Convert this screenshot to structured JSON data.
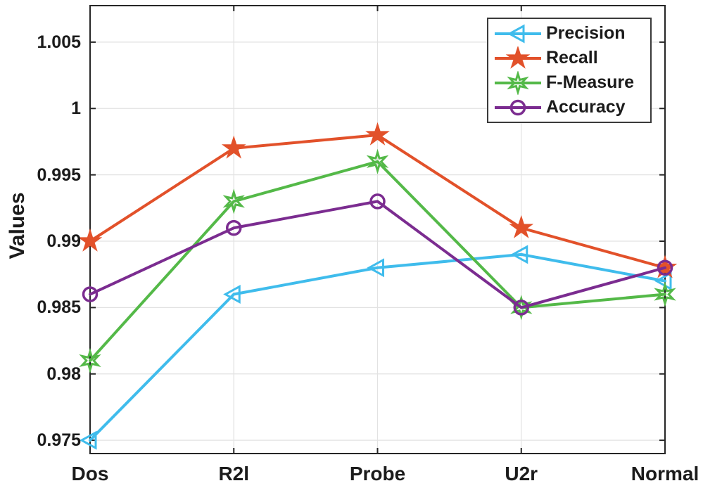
{
  "chart_data": {
    "type": "line",
    "title": "",
    "xlabel": "",
    "ylabel": "Values",
    "categories": [
      "Dos",
      "R2l",
      "Probe",
      "U2r",
      "Normal"
    ],
    "series": [
      {
        "name": "Precision",
        "marker": "triangle-left",
        "color": "#3FBCEC",
        "filled": false,
        "values": [
          0.975,
          0.986,
          0.988,
          0.989,
          0.987
        ]
      },
      {
        "name": "Recall",
        "marker": "pentagram",
        "color": "#E2512A",
        "filled": true,
        "values": [
          0.99,
          0.997,
          0.998,
          0.991,
          0.988
        ]
      },
      {
        "name": "F-Measure",
        "marker": "hexagram",
        "color": "#54B948",
        "filled": false,
        "values": [
          0.981,
          0.993,
          0.996,
          0.985,
          0.986
        ]
      },
      {
        "name": "Accuracy",
        "marker": "circle",
        "color": "#7B2C90",
        "filled": false,
        "values": [
          0.986,
          0.991,
          0.993,
          0.985,
          0.988
        ]
      }
    ],
    "ylim": [
      0.974,
      1.00775
    ],
    "yticks": [
      0.975,
      0.98,
      0.985,
      0.99,
      0.995,
      1,
      1.005
    ],
    "ytick_labels": [
      "0.975",
      "0.98",
      "0.985",
      "0.99",
      "0.995",
      "1",
      "1.005"
    ],
    "grid": true,
    "legend_position": "top-right",
    "axis_color": "#262626",
    "grid_color": "#E2E2E2",
    "text_color": "#1b1b1b",
    "background_color": "#ffffff"
  }
}
